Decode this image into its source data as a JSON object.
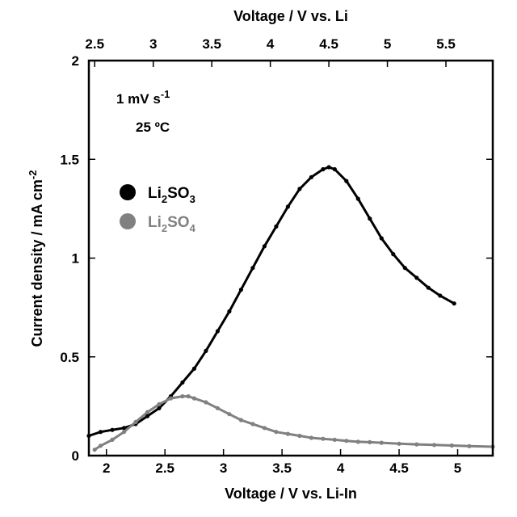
{
  "chart_data": {
    "type": "scatter",
    "xlabel_bottom": "Voltage / V vs.  Li-In",
    "xlabel_top": "Voltage / V vs. Li",
    "ylabel": "Current density / mA cm",
    "ylabel_sup": "-2",
    "xlim": [
      1.85,
      5.3
    ],
    "ylim": [
      0,
      2
    ],
    "xticks_bottom": [
      "2",
      "2.5",
      "3",
      "3.5",
      "4",
      "4.5",
      "5"
    ],
    "xticks_top": [
      "2.5",
      "3",
      "3.5",
      "4",
      "4.5",
      "5",
      "5.5"
    ],
    "yticks": [
      "0",
      "0.5",
      "1",
      "1.5",
      "2"
    ],
    "annotation_rate": "1 mV s",
    "annotation_rate_sup": "-1",
    "annotation_temp": "25 ºC",
    "series": [
      {
        "name": "Li2SO3",
        "label_parts": [
          "Li",
          "2",
          "SO",
          "3"
        ],
        "color": "#000000",
        "x": [
          1.85,
          1.95,
          2.05,
          2.15,
          2.25,
          2.35,
          2.45,
          2.55,
          2.65,
          2.75,
          2.85,
          2.95,
          3.05,
          3.15,
          3.25,
          3.35,
          3.45,
          3.55,
          3.65,
          3.75,
          3.85,
          3.9,
          3.95,
          4.05,
          4.15,
          4.25,
          4.35,
          4.45,
          4.55,
          4.65,
          4.75,
          4.85,
          4.97
        ],
        "y": [
          0.1,
          0.12,
          0.13,
          0.14,
          0.16,
          0.2,
          0.24,
          0.3,
          0.37,
          0.44,
          0.53,
          0.63,
          0.73,
          0.84,
          0.95,
          1.06,
          1.16,
          1.26,
          1.35,
          1.41,
          1.45,
          1.46,
          1.45,
          1.39,
          1.3,
          1.2,
          1.1,
          1.02,
          0.95,
          0.9,
          0.85,
          0.81,
          0.77
        ]
      },
      {
        "name": "Li2SO4",
        "label_parts": [
          "Li",
          "2",
          "SO",
          "4"
        ],
        "color": "#808080",
        "x": [
          1.9,
          1.95,
          2.05,
          2.15,
          2.25,
          2.35,
          2.45,
          2.55,
          2.65,
          2.7,
          2.75,
          2.85,
          2.95,
          3.05,
          3.15,
          3.25,
          3.35,
          3.45,
          3.55,
          3.65,
          3.75,
          3.85,
          3.95,
          4.05,
          4.15,
          4.25,
          4.35,
          4.5,
          4.65,
          4.8,
          4.95,
          5.1,
          5.3
        ],
        "y": [
          0.03,
          0.05,
          0.08,
          0.12,
          0.17,
          0.22,
          0.26,
          0.29,
          0.3,
          0.3,
          0.29,
          0.27,
          0.24,
          0.21,
          0.18,
          0.16,
          0.14,
          0.12,
          0.11,
          0.1,
          0.09,
          0.085,
          0.08,
          0.075,
          0.07,
          0.068,
          0.065,
          0.06,
          0.057,
          0.054,
          0.051,
          0.048,
          0.045
        ]
      }
    ]
  }
}
